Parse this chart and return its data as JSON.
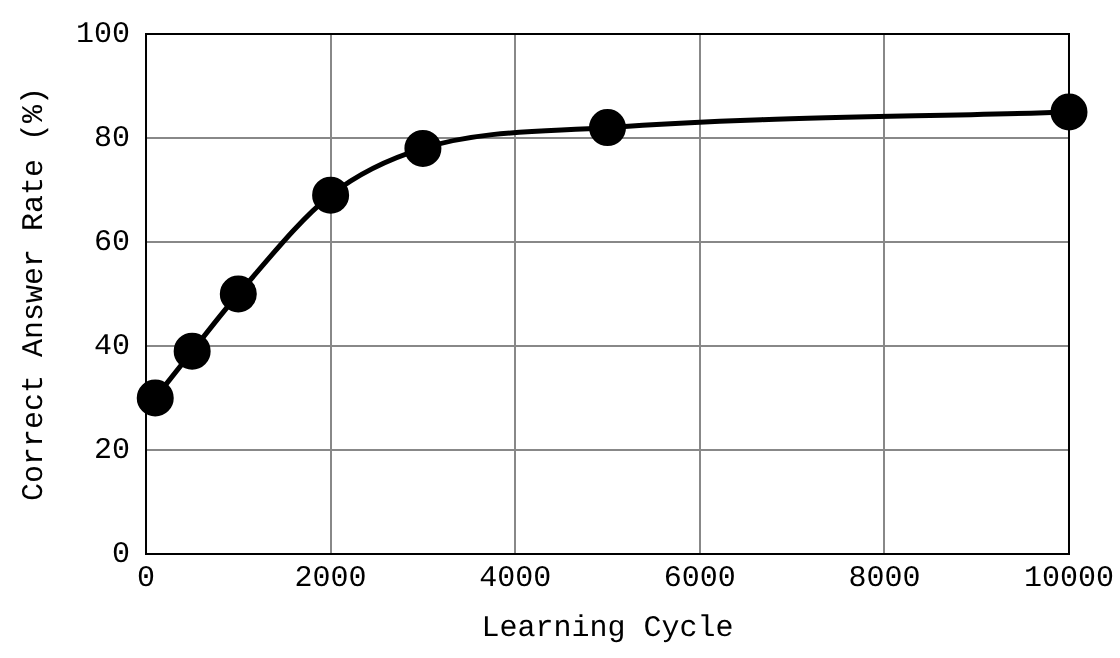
{
  "chart_data": {
    "type": "line",
    "xlabel": "Learning Cycle",
    "ylabel": "Correct Answer Rate (%)",
    "x": [
      100,
      500,
      1000,
      2000,
      3000,
      5000,
      10000
    ],
    "series": [
      {
        "color": "#000000",
        "values": [
          30,
          39,
          50,
          69,
          78,
          82,
          85
        ]
      }
    ],
    "xlim": [
      0,
      10000
    ],
    "xticks": [
      0,
      2000,
      4000,
      6000,
      8000,
      10000
    ],
    "ylim": [
      0,
      100
    ],
    "yticks": [
      0,
      20,
      40,
      60,
      80,
      100
    ],
    "grid": true,
    "marker": "circle",
    "line_style": "solid",
    "legend": false
  }
}
